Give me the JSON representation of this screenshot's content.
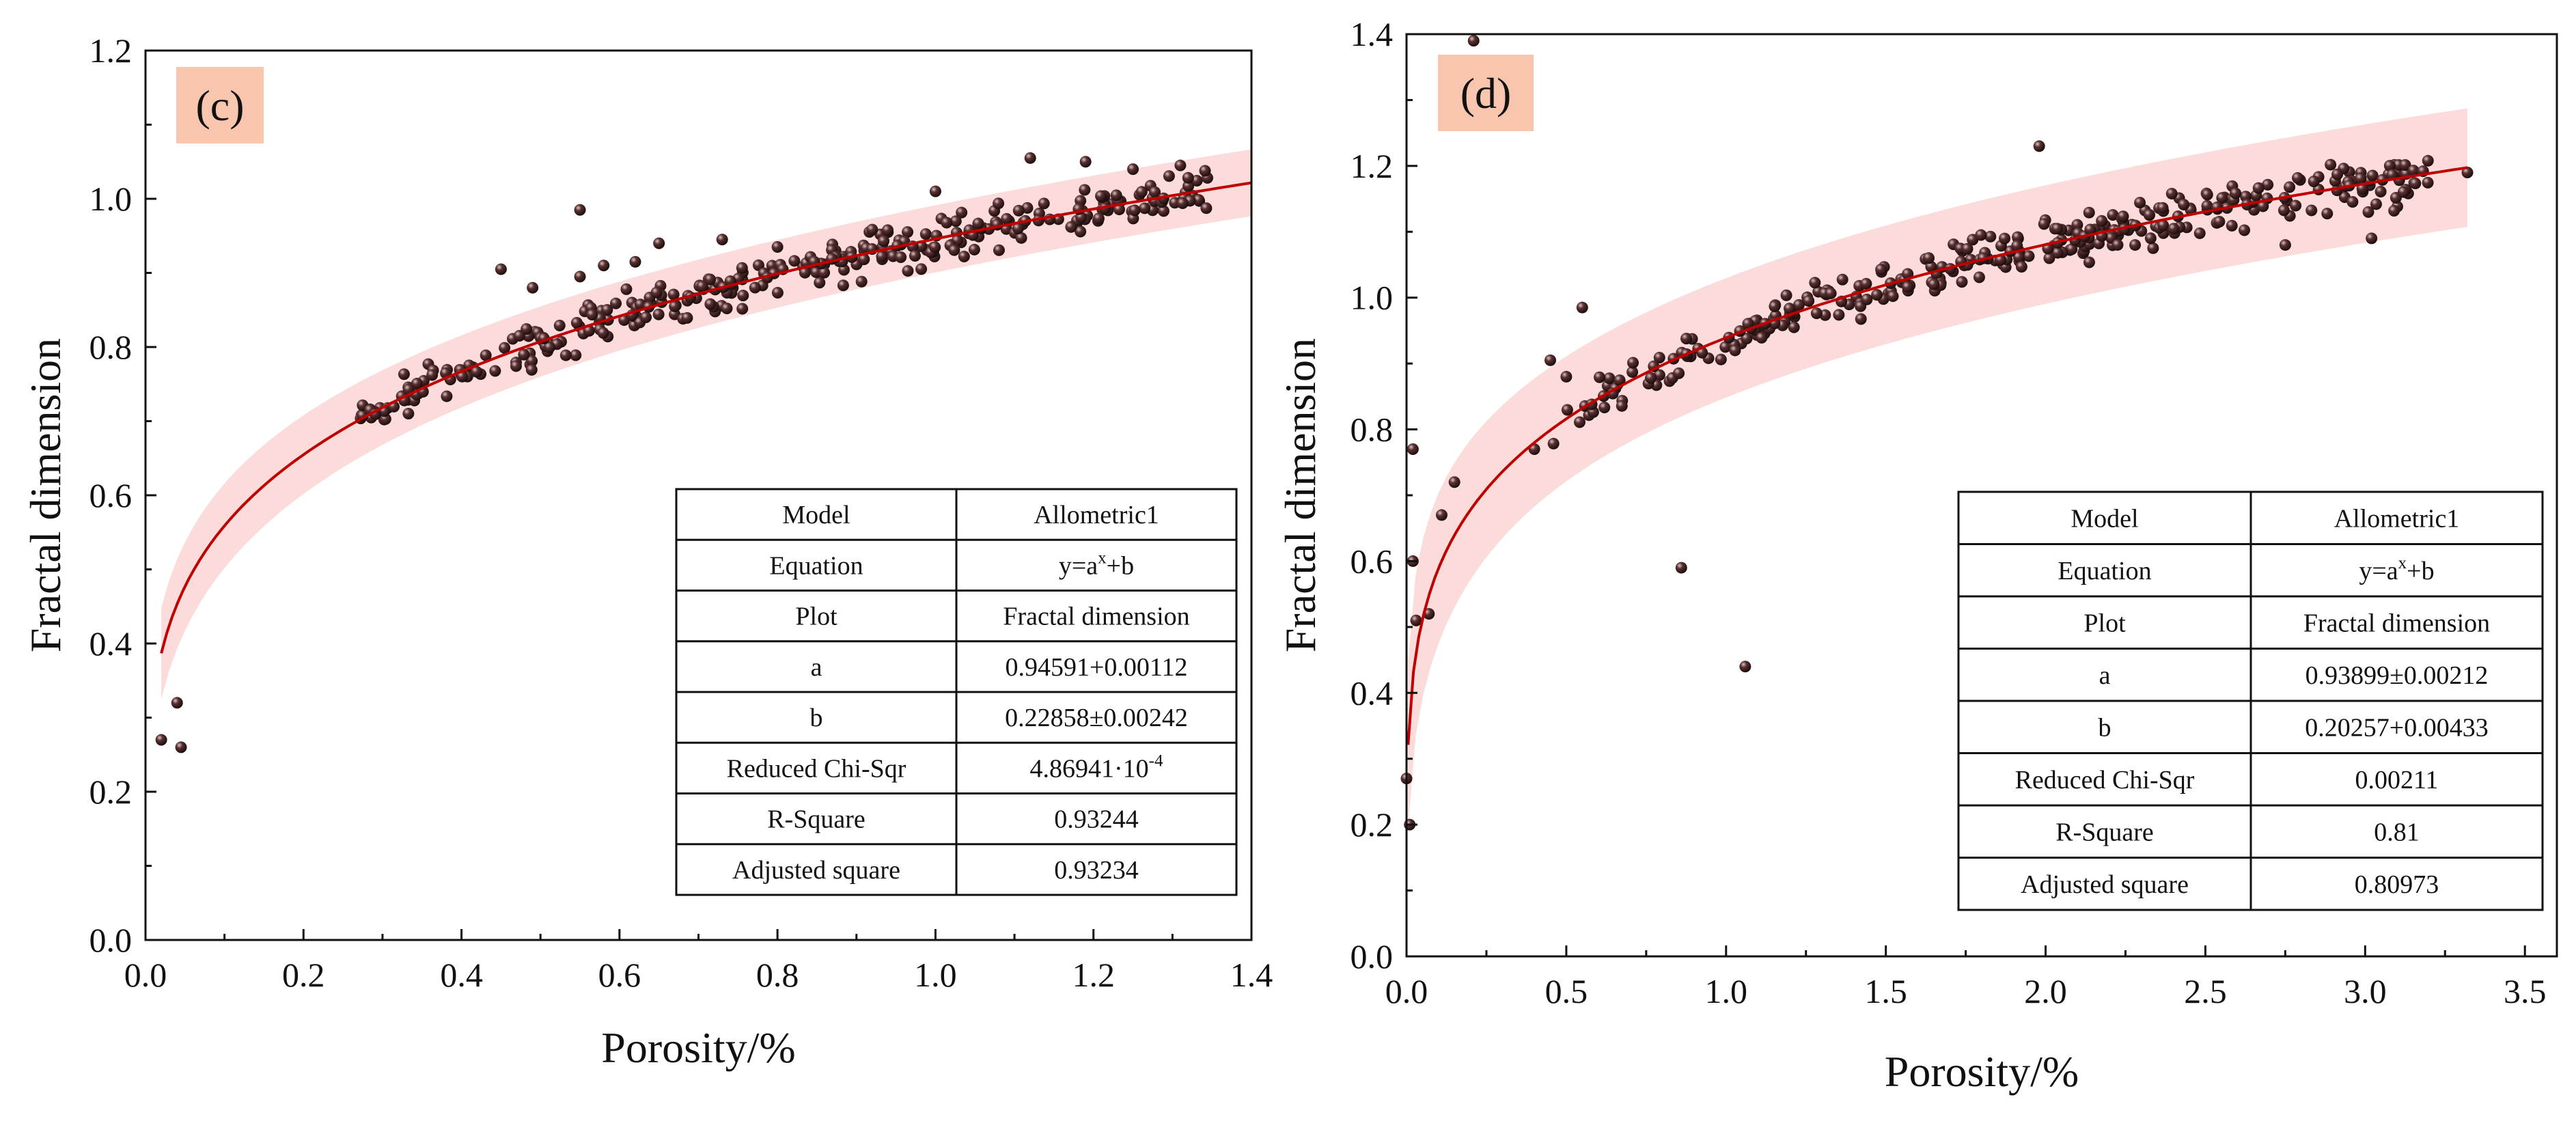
{
  "colors": {
    "fit_line": "#c00000",
    "band": "#fbd5d5",
    "points": "#2a1414",
    "label_bg": "#f8c6ae",
    "frame": "#111111"
  },
  "chart_data": [
    {
      "type": "scatter",
      "panel_label": "(c)",
      "xlabel": "Porosity/%",
      "ylabel": "Fractal dimension",
      "xlim": [
        0.0,
        1.4
      ],
      "ylim": [
        0.0,
        1.2
      ],
      "x_ticks": [
        "0.0",
        "0.2",
        "0.4",
        "0.6",
        "0.8",
        "1.0",
        "1.2",
        "1.4"
      ],
      "y_ticks": [
        "0.0",
        "0.2",
        "0.4",
        "0.6",
        "0.8",
        "1.0",
        "1.2"
      ],
      "fit": {
        "model": "Allometric1",
        "a": 0.94591,
        "b": 0.22858,
        "x_start": 0.02,
        "band_halfwidth": 0.045
      },
      "outliers": [
        [
          0.02,
          0.27
        ],
        [
          0.04,
          0.32
        ],
        [
          0.045,
          0.26
        ],
        [
          0.45,
          0.905
        ],
        [
          0.49,
          0.88
        ],
        [
          0.55,
          0.985
        ],
        [
          0.55,
          0.895
        ],
        [
          0.58,
          0.91
        ],
        [
          0.62,
          0.915
        ],
        [
          0.65,
          0.94
        ],
        [
          0.73,
          0.945
        ],
        [
          0.8,
          0.935
        ],
        [
          1.0,
          1.01
        ],
        [
          1.12,
          1.055
        ],
        [
          1.19,
          1.05
        ],
        [
          1.25,
          1.04
        ],
        [
          1.31,
          1.045
        ]
      ],
      "cloud": {
        "x_min": 0.26,
        "x_max": 1.35,
        "count": 330,
        "spread": 0.022,
        "seed": 7
      },
      "table": [
        {
          "label": "Model",
          "value": "Allometric1"
        },
        {
          "label": "Equation",
          "value": "y=a",
          "sup": "x",
          "tail": "+b"
        },
        {
          "label": "Plot",
          "value": "Fractal dimension"
        },
        {
          "label": "a",
          "value": "0.94591+0.00112"
        },
        {
          "label": "b",
          "value": "0.22858±0.00242"
        },
        {
          "label": "Reduced Chi-Sqr",
          "value": "4.86941·10",
          "sup": "-4",
          "tail": ""
        },
        {
          "label": "R-Square",
          "value": "0.93244"
        },
        {
          "label": "Adjusted square",
          "value": "0.93234"
        }
      ]
    },
    {
      "type": "scatter",
      "panel_label": "(d)",
      "xlabel": "Porosity/%",
      "ylabel": "Fractal dimension",
      "xlim": [
        0.0,
        3.6
      ],
      "ylim": [
        0.0,
        1.4
      ],
      "x_ticks": [
        "0.0",
        "0.5",
        "1.0",
        "1.5",
        "2.0",
        "2.5",
        "3.0",
        "3.5"
      ],
      "y_ticks": [
        "0.0",
        "0.2",
        "0.4",
        "0.6",
        "0.8",
        "1.0",
        "1.2",
        "1.4"
      ],
      "fit": {
        "model": "Allometric1",
        "a": 0.93899,
        "b": 0.20257,
        "x_start": 0.005,
        "x_end": 3.32,
        "band_halfwidth": 0.09
      },
      "outliers": [
        [
          0.0,
          0.27
        ],
        [
          0.01,
          0.2
        ],
        [
          0.02,
          0.6
        ],
        [
          0.02,
          0.77
        ],
        [
          0.03,
          0.51
        ],
        [
          0.07,
          0.52
        ],
        [
          0.11,
          0.67
        ],
        [
          0.15,
          0.72
        ],
        [
          0.21,
          1.39
        ],
        [
          0.4,
          0.77
        ],
        [
          0.45,
          0.905
        ],
        [
          0.5,
          0.88
        ],
        [
          0.55,
          0.985
        ],
        [
          0.86,
          0.59
        ],
        [
          1.06,
          0.44
        ],
        [
          1.98,
          1.23
        ],
        [
          2.28,
          1.08
        ],
        [
          2.75,
          1.08
        ],
        [
          2.95,
          1.17
        ],
        [
          3.02,
          1.09
        ],
        [
          3.01,
          1.13
        ],
        [
          3.32,
          1.19
        ]
      ],
      "cloud": {
        "x_min": 0.45,
        "x_max": 3.2,
        "count": 320,
        "spread": 0.025,
        "seed": 13
      },
      "table": [
        {
          "label": "Model",
          "value": "Allometric1"
        },
        {
          "label": "Equation",
          "value": "y=a",
          "sup": "x",
          "tail": "+b"
        },
        {
          "label": "Plot",
          "value": "Fractal dimension"
        },
        {
          "label": "a",
          "value": "0.93899±0.00212"
        },
        {
          "label": "b",
          "value": "0.20257+0.00433"
        },
        {
          "label": "Reduced Chi-Sqr",
          "value": "0.00211"
        },
        {
          "label": "R-Square",
          "value": "0.81"
        },
        {
          "label": "Adjusted square",
          "value": "0.80973"
        }
      ]
    }
  ]
}
